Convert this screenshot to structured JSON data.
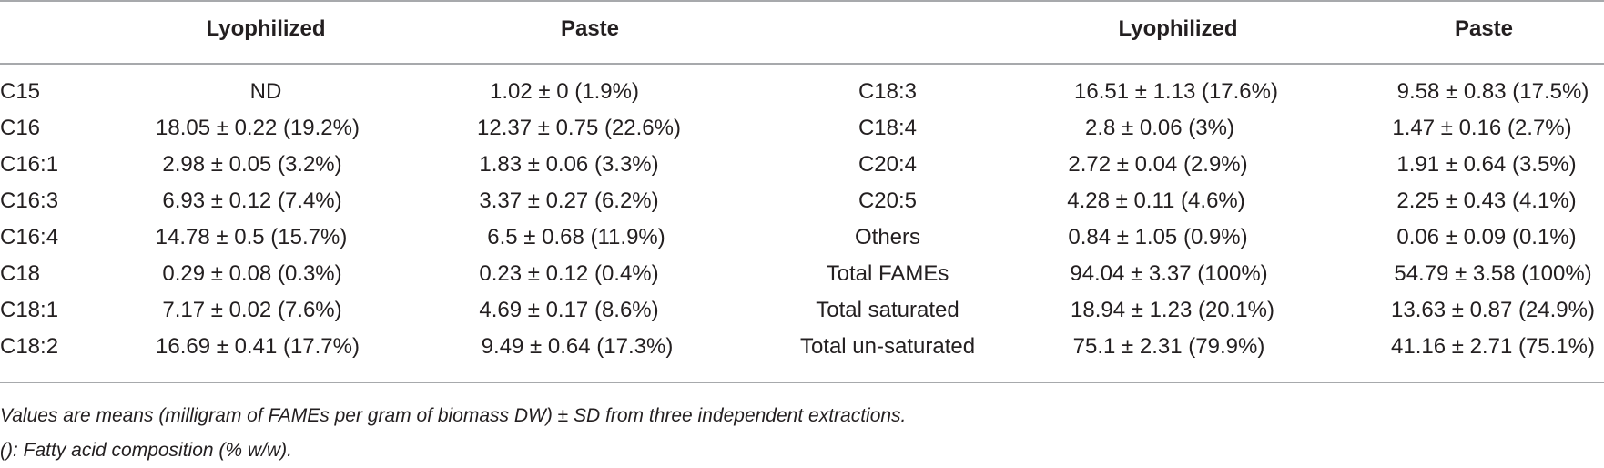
{
  "table": {
    "headers": [
      "",
      "Lyophilized",
      "Paste",
      "",
      "Lyophilized",
      "Paste"
    ],
    "rows": [
      [
        "C15",
        "ND",
        "1.02 ± 0 (1.9%)",
        "C18:3",
        "16.51 ± 1.13 (17.6%)",
        "9.58 ± 0.83 (17.5%)"
      ],
      [
        "C16",
        "18.05 ± 0.22 (19.2%)",
        "12.37 ± 0.75 (22.6%)",
        "C18:4",
        "2.8 ± 0.06 (3%)",
        "1.47 ± 0.16 (2.7%)"
      ],
      [
        "C16:1",
        "2.98 ± 0.05 (3.2%)",
        "1.83 ± 0.06 (3.3%)",
        "C20:4",
        "2.72 ± 0.04 (2.9%)",
        "1.91 ± 0.64 (3.5%)"
      ],
      [
        "C16:3",
        "6.93 ± 0.12 (7.4%)",
        "3.37 ± 0.27 (6.2%)",
        "C20:5",
        "4.28 ± 0.11 (4.6%)",
        "2.25 ± 0.43 (4.1%)"
      ],
      [
        "C16:4",
        "14.78 ± 0.5 (15.7%)",
        "6.5 ± 0.68 (11.9%)",
        "Others",
        "0.84 ± 1.05 (0.9%)",
        "0.06 ± 0.09 (0.1%)"
      ],
      [
        "C18",
        "0.29 ± 0.08 (0.3%)",
        "0.23 ± 0.12 (0.4%)",
        "Total FAMEs",
        "94.04 ± 3.37 (100%)",
        "54.79 ± 3.58 (100%)"
      ],
      [
        "C18:1",
        "7.17 ± 0.02 (7.6%)",
        "4.69 ± 0.17 (8.6%)",
        "Total saturated",
        "18.94 ± 1.23 (20.1%)",
        "13.63 ± 0.87 (24.9%)"
      ],
      [
        "C18:2",
        "16.69 ± 0.41 (17.7%)",
        "9.49 ± 0.64 (17.3%)",
        "Total un-saturated",
        "75.1 ± 2.31 (79.9%)",
        "41.16 ± 2.71 (75.1%)"
      ]
    ]
  },
  "footnotes": [
    "Values are means (milligram of FAMEs per gram of biomass DW) ± SD from three independent extractions.",
    "(): Fatty acid composition (% w/w)."
  ]
}
